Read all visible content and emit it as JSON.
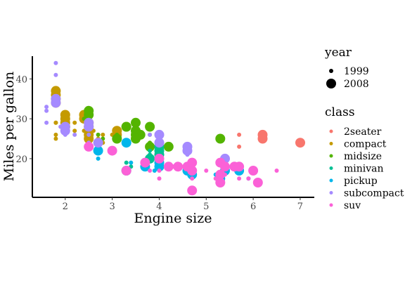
{
  "chart_data": {
    "type": "scatter",
    "xlabel": "Engine size",
    "ylabel": "Miles per gallon",
    "xlim": [
      1.3,
      7.3
    ],
    "ylim": [
      10.3,
      45.7
    ],
    "x_ticks": [
      2,
      3,
      4,
      5,
      6,
      7
    ],
    "y_ticks": [
      20,
      30,
      40
    ],
    "grid": false,
    "legend_position": "right",
    "legend_size": {
      "title": "year",
      "entries": [
        {
          "label": "1999",
          "year": 1999
        },
        {
          "label": "2008",
          "year": 2008
        }
      ]
    },
    "legend_color": {
      "title": "class",
      "entries": [
        {
          "label": "2seater",
          "color": "#F8766D"
        },
        {
          "label": "compact",
          "color": "#C49A00"
        },
        {
          "label": "midsize",
          "color": "#53B400"
        },
        {
          "label": "minivan",
          "color": "#00C094"
        },
        {
          "label": "pickup",
          "color": "#00B6EB"
        },
        {
          "label": "subcompact",
          "color": "#A58AFF"
        },
        {
          "label": "suv",
          "color": "#FB61D7"
        }
      ]
    },
    "series": [
      {
        "name": "2seater",
        "points": [
          {
            "x": 5.7,
            "y": 26,
            "year": 1999
          },
          {
            "x": 5.7,
            "y": 23,
            "year": 1999
          },
          {
            "x": 6.2,
            "y": 26,
            "year": 2008
          },
          {
            "x": 6.2,
            "y": 25,
            "year": 2008
          },
          {
            "x": 7.0,
            "y": 24,
            "year": 2008
          }
        ]
      },
      {
        "name": "compact",
        "points": [
          {
            "x": 1.8,
            "y": 29,
            "year": 1999
          },
          {
            "x": 1.8,
            "y": 29,
            "year": 1999
          },
          {
            "x": 1.8,
            "y": 26,
            "year": 1999
          },
          {
            "x": 1.8,
            "y": 25,
            "year": 1999
          },
          {
            "x": 2.0,
            "y": 29,
            "year": 1999
          },
          {
            "x": 2.2,
            "y": 29,
            "year": 1999
          },
          {
            "x": 2.2,
            "y": 27,
            "year": 1999
          },
          {
            "x": 2.4,
            "y": 27,
            "year": 1999
          },
          {
            "x": 2.4,
            "y": 30,
            "year": 1999
          },
          {
            "x": 2.5,
            "y": 26,
            "year": 1999
          },
          {
            "x": 2.5,
            "y": 25,
            "year": 1999
          },
          {
            "x": 2.8,
            "y": 26,
            "year": 1999
          },
          {
            "x": 2.8,
            "y": 24,
            "year": 1999
          },
          {
            "x": 2.6,
            "y": 27,
            "year": 1999
          },
          {
            "x": 2.7,
            "y": 25,
            "year": 1999
          },
          {
            "x": 3.0,
            "y": 26,
            "year": 1999
          },
          {
            "x": 1.8,
            "y": 37,
            "year": 2008
          },
          {
            "x": 1.8,
            "y": 36,
            "year": 2008
          },
          {
            "x": 1.8,
            "y": 35,
            "year": 2008
          },
          {
            "x": 1.8,
            "y": 34,
            "year": 2008
          },
          {
            "x": 2.0,
            "y": 31,
            "year": 2008
          },
          {
            "x": 2.0,
            "y": 30,
            "year": 2008
          },
          {
            "x": 2.0,
            "y": 28,
            "year": 2008
          },
          {
            "x": 2.0,
            "y": 29,
            "year": 2008
          },
          {
            "x": 2.4,
            "y": 31,
            "year": 2008
          },
          {
            "x": 2.4,
            "y": 30,
            "year": 2008
          },
          {
            "x": 2.5,
            "y": 29,
            "year": 2008
          },
          {
            "x": 2.5,
            "y": 28,
            "year": 2008
          },
          {
            "x": 2.5,
            "y": 27,
            "year": 2008
          },
          {
            "x": 2.5,
            "y": 26,
            "year": 2008
          },
          {
            "x": 2.5,
            "y": 25,
            "year": 2008
          },
          {
            "x": 3.1,
            "y": 27,
            "year": 2008
          },
          {
            "x": 3.1,
            "y": 26,
            "year": 2008
          },
          {
            "x": 3.3,
            "y": 28,
            "year": 2008
          }
        ]
      },
      {
        "name": "midsize",
        "points": [
          {
            "x": 2.4,
            "y": 30,
            "year": 1999
          },
          {
            "x": 2.7,
            "y": 26,
            "year": 1999
          },
          {
            "x": 2.8,
            "y": 25,
            "year": 1999
          },
          {
            "x": 3.1,
            "y": 26,
            "year": 1999
          },
          {
            "x": 3.8,
            "y": 26,
            "year": 1999
          },
          {
            "x": 3.8,
            "y": 24,
            "year": 1999
          },
          {
            "x": 2.5,
            "y": 32,
            "year": 2008
          },
          {
            "x": 2.5,
            "y": 31,
            "year": 2008
          },
          {
            "x": 3.1,
            "y": 25,
            "year": 2008
          },
          {
            "x": 3.3,
            "y": 28,
            "year": 2008
          },
          {
            "x": 3.5,
            "y": 29,
            "year": 2008
          },
          {
            "x": 3.5,
            "y": 27,
            "year": 2008
          },
          {
            "x": 3.5,
            "y": 26,
            "year": 2008
          },
          {
            "x": 3.6,
            "y": 26,
            "year": 2008
          },
          {
            "x": 3.5,
            "y": 25,
            "year": 2008
          },
          {
            "x": 3.8,
            "y": 28,
            "year": 2008
          },
          {
            "x": 3.8,
            "y": 23,
            "year": 2008
          },
          {
            "x": 4.0,
            "y": 23,
            "year": 2008
          },
          {
            "x": 4.2,
            "y": 23,
            "year": 2008
          },
          {
            "x": 5.3,
            "y": 25,
            "year": 2008
          }
        ]
      },
      {
        "name": "minivan",
        "points": [
          {
            "x": 3.3,
            "y": 19,
            "year": 1999
          },
          {
            "x": 3.3,
            "y": 17,
            "year": 1999
          },
          {
            "x": 3.8,
            "y": 22,
            "year": 1999
          },
          {
            "x": 3.8,
            "y": 21,
            "year": 1999
          },
          {
            "x": 3.4,
            "y": 18,
            "year": 1999
          },
          {
            "x": 3.3,
            "y": 17,
            "year": 2008
          },
          {
            "x": 3.8,
            "y": 20,
            "year": 2008
          },
          {
            "x": 4.0,
            "y": 23,
            "year": 2008
          },
          {
            "x": 4.0,
            "y": 22,
            "year": 2008
          },
          {
            "x": 4.0,
            "y": 21,
            "year": 2008
          }
        ]
      },
      {
        "name": "pickup",
        "points": [
          {
            "x": 2.7,
            "y": 20,
            "year": 1999
          },
          {
            "x": 3.4,
            "y": 19,
            "year": 1999
          },
          {
            "x": 3.9,
            "y": 17,
            "year": 1999
          },
          {
            "x": 4.7,
            "y": 17,
            "year": 1999
          },
          {
            "x": 5.2,
            "y": 16,
            "year": 1999
          },
          {
            "x": 5.9,
            "y": 15,
            "year": 1999
          },
          {
            "x": 2.7,
            "y": 22,
            "year": 2008
          },
          {
            "x": 3.3,
            "y": 24,
            "year": 2008
          },
          {
            "x": 3.7,
            "y": 18,
            "year": 2008
          },
          {
            "x": 4.0,
            "y": 19,
            "year": 2008
          },
          {
            "x": 4.0,
            "y": 18,
            "year": 2008
          },
          {
            "x": 4.6,
            "y": 17,
            "year": 2008
          },
          {
            "x": 4.7,
            "y": 16,
            "year": 2008
          },
          {
            "x": 5.3,
            "y": 15,
            "year": 2008
          },
          {
            "x": 5.4,
            "y": 17,
            "year": 2008
          },
          {
            "x": 5.7,
            "y": 17,
            "year": 2008
          }
        ]
      },
      {
        "name": "subcompact",
        "points": [
          {
            "x": 1.6,
            "y": 33,
            "year": 1999
          },
          {
            "x": 1.6,
            "y": 32,
            "year": 1999
          },
          {
            "x": 1.6,
            "y": 29,
            "year": 1999
          },
          {
            "x": 1.8,
            "y": 44,
            "year": 1999
          },
          {
            "x": 1.8,
            "y": 41,
            "year": 1999
          },
          {
            "x": 1.9,
            "y": 28,
            "year": 1999
          },
          {
            "x": 2.0,
            "y": 26,
            "year": 1999
          },
          {
            "x": 2.0,
            "y": 27,
            "year": 1999
          },
          {
            "x": 2.2,
            "y": 26,
            "year": 1999
          },
          {
            "x": 2.5,
            "y": 26,
            "year": 1999
          },
          {
            "x": 2.5,
            "y": 24,
            "year": 1999
          },
          {
            "x": 3.8,
            "y": 26,
            "year": 1999
          },
          {
            "x": 4.6,
            "y": 21,
            "year": 1999
          },
          {
            "x": 1.8,
            "y": 35,
            "year": 2008
          },
          {
            "x": 1.8,
            "y": 34,
            "year": 2008
          },
          {
            "x": 2.0,
            "y": 28,
            "year": 2008
          },
          {
            "x": 2.0,
            "y": 27,
            "year": 2008
          },
          {
            "x": 2.5,
            "y": 29,
            "year": 2008
          },
          {
            "x": 2.5,
            "y": 28,
            "year": 2008
          },
          {
            "x": 2.7,
            "y": 24,
            "year": 2008
          },
          {
            "x": 4.0,
            "y": 26,
            "year": 2008
          },
          {
            "x": 4.0,
            "y": 24,
            "year": 2008
          },
          {
            "x": 4.6,
            "y": 23,
            "year": 2008
          },
          {
            "x": 4.6,
            "y": 22,
            "year": 2008
          },
          {
            "x": 5.4,
            "y": 20,
            "year": 2008
          }
        ]
      },
      {
        "name": "suv",
        "points": [
          {
            "x": 3.8,
            "y": 17,
            "year": 1999
          },
          {
            "x": 4.0,
            "y": 15,
            "year": 1999
          },
          {
            "x": 4.0,
            "y": 17,
            "year": 1999
          },
          {
            "x": 4.3,
            "y": 18,
            "year": 1999
          },
          {
            "x": 4.7,
            "y": 15,
            "year": 1999
          },
          {
            "x": 4.7,
            "y": 17,
            "year": 1999
          },
          {
            "x": 5.0,
            "y": 17,
            "year": 1999
          },
          {
            "x": 5.2,
            "y": 15,
            "year": 1999
          },
          {
            "x": 5.4,
            "y": 16,
            "year": 1999
          },
          {
            "x": 5.7,
            "y": 15,
            "year": 1999
          },
          {
            "x": 5.9,
            "y": 15,
            "year": 1999
          },
          {
            "x": 6.5,
            "y": 17,
            "year": 1999
          },
          {
            "x": 2.5,
            "y": 23,
            "year": 2008
          },
          {
            "x": 3.0,
            "y": 22,
            "year": 2008
          },
          {
            "x": 3.3,
            "y": 17,
            "year": 2008
          },
          {
            "x": 3.7,
            "y": 19,
            "year": 2008
          },
          {
            "x": 4.0,
            "y": 20,
            "year": 2008
          },
          {
            "x": 4.2,
            "y": 18,
            "year": 2008
          },
          {
            "x": 4.4,
            "y": 18,
            "year": 2008
          },
          {
            "x": 4.6,
            "y": 18,
            "year": 2008
          },
          {
            "x": 4.7,
            "y": 19,
            "year": 2008
          },
          {
            "x": 4.7,
            "y": 17,
            "year": 2008
          },
          {
            "x": 4.7,
            "y": 12,
            "year": 2008
          },
          {
            "x": 5.3,
            "y": 19,
            "year": 2008
          },
          {
            "x": 5.3,
            "y": 16,
            "year": 2008
          },
          {
            "x": 5.3,
            "y": 14,
            "year": 2008
          },
          {
            "x": 5.4,
            "y": 18,
            "year": 2008
          },
          {
            "x": 5.6,
            "y": 18,
            "year": 2008
          },
          {
            "x": 5.7,
            "y": 18,
            "year": 2008
          },
          {
            "x": 6.0,
            "y": 17,
            "year": 2008
          },
          {
            "x": 6.1,
            "y": 14,
            "year": 2008
          }
        ]
      }
    ]
  }
}
